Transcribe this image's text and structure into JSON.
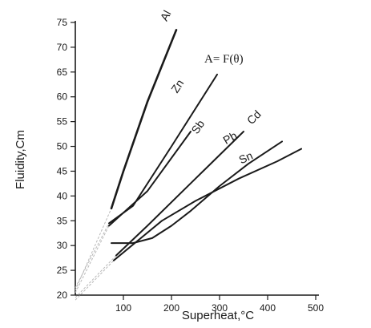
{
  "chart_data": {
    "type": "line",
    "title": "",
    "xlabel": "Superheat,°C",
    "ylabel": "Fluidity,Cm",
    "xlim": [
      0,
      500
    ],
    "ylim": [
      20,
      75
    ],
    "xticks": [
      100,
      200,
      300,
      400,
      500
    ],
    "yticks": [
      20,
      25,
      30,
      35,
      40,
      45,
      50,
      55,
      60,
      65,
      70,
      75
    ],
    "grid": false,
    "legend": "none",
    "annotation": "A= F(θ)",
    "series": [
      {
        "name": "Al",
        "x": [
          75,
          100,
          150,
          210
        ],
        "y": [
          37.5,
          45,
          59,
          73.5
        ]
      },
      {
        "name": "Zn",
        "x": [
          70,
          120,
          200,
          295
        ],
        "y": [
          34.5,
          38,
          50,
          64.5
        ]
      },
      {
        "name": "Sb",
        "x": [
          70,
          150,
          240
        ],
        "y": [
          34,
          41,
          53
        ]
      },
      {
        "name": "Cd",
        "x": [
          85,
          150,
          250,
          350
        ],
        "y": [
          28,
          34,
          43.5,
          53
        ]
      },
      {
        "name": "Pb",
        "x": [
          75,
          120,
          160,
          200,
          240,
          300,
          360,
          430
        ],
        "y": [
          30.5,
          30.5,
          31.5,
          34,
          37,
          42,
          46.5,
          51
        ]
      },
      {
        "name": "Sn",
        "x": [
          80,
          130,
          180,
          250,
          340,
          420,
          470
        ],
        "y": [
          27,
          31,
          35,
          39,
          43.5,
          47,
          49.5
        ]
      }
    ],
    "extrapolations": [
      {
        "series": "Al",
        "x": [
          0,
          75
        ],
        "y": [
          21,
          37.5
        ]
      },
      {
        "series": "Zn",
        "x": [
          0,
          70
        ],
        "y": [
          21.5,
          34.5
        ]
      },
      {
        "series": "Sb",
        "x": [
          0,
          70
        ],
        "y": [
          20.5,
          34
        ]
      },
      {
        "series": "Cd",
        "x": [
          0,
          85
        ],
        "y": [
          19.5,
          28
        ]
      },
      {
        "series": "Sn",
        "x": [
          0,
          80
        ],
        "y": [
          19,
          27
        ]
      }
    ]
  }
}
